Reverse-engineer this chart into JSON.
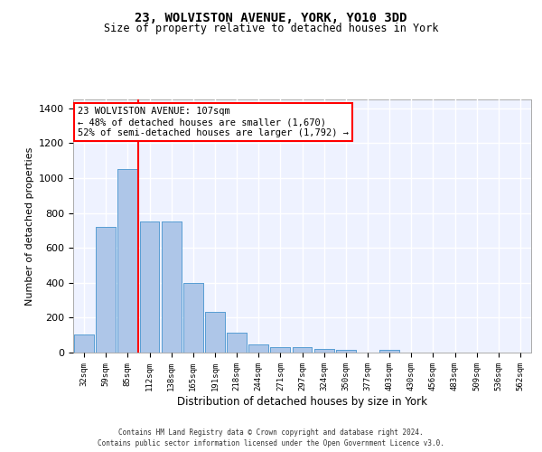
{
  "title1": "23, WOLVISTON AVENUE, YORK, YO10 3DD",
  "title2": "Size of property relative to detached houses in York",
  "xlabel": "Distribution of detached houses by size in York",
  "ylabel": "Number of detached properties",
  "bar_labels": [
    "32sqm",
    "59sqm",
    "85sqm",
    "112sqm",
    "138sqm",
    "165sqm",
    "191sqm",
    "218sqm",
    "244sqm",
    "271sqm",
    "297sqm",
    "324sqm",
    "350sqm",
    "377sqm",
    "403sqm",
    "430sqm",
    "456sqm",
    "483sqm",
    "509sqm",
    "536sqm",
    "562sqm"
  ],
  "bar_values": [
    105,
    720,
    1050,
    750,
    750,
    400,
    235,
    115,
    45,
    30,
    30,
    20,
    15,
    0,
    15,
    0,
    0,
    0,
    0,
    0,
    0
  ],
  "bar_color": "#aec6e8",
  "bar_edge_color": "#5a9fd4",
  "vline_color": "red",
  "annotation_line1": "23 WOLVISTON AVENUE: 107sqm",
  "annotation_line2": "← 48% of detached houses are smaller (1,670)",
  "annotation_line3": "52% of semi-detached houses are larger (1,792) →",
  "annotation_box_color": "white",
  "annotation_box_edge": "red",
  "ylim": [
    0,
    1450
  ],
  "yticks": [
    0,
    200,
    400,
    600,
    800,
    1000,
    1200,
    1400
  ],
  "bg_color": "#eef2ff",
  "grid_color": "#ffffff",
  "footer1": "Contains HM Land Registry data © Crown copyright and database right 2024.",
  "footer2": "Contains public sector information licensed under the Open Government Licence v3.0."
}
